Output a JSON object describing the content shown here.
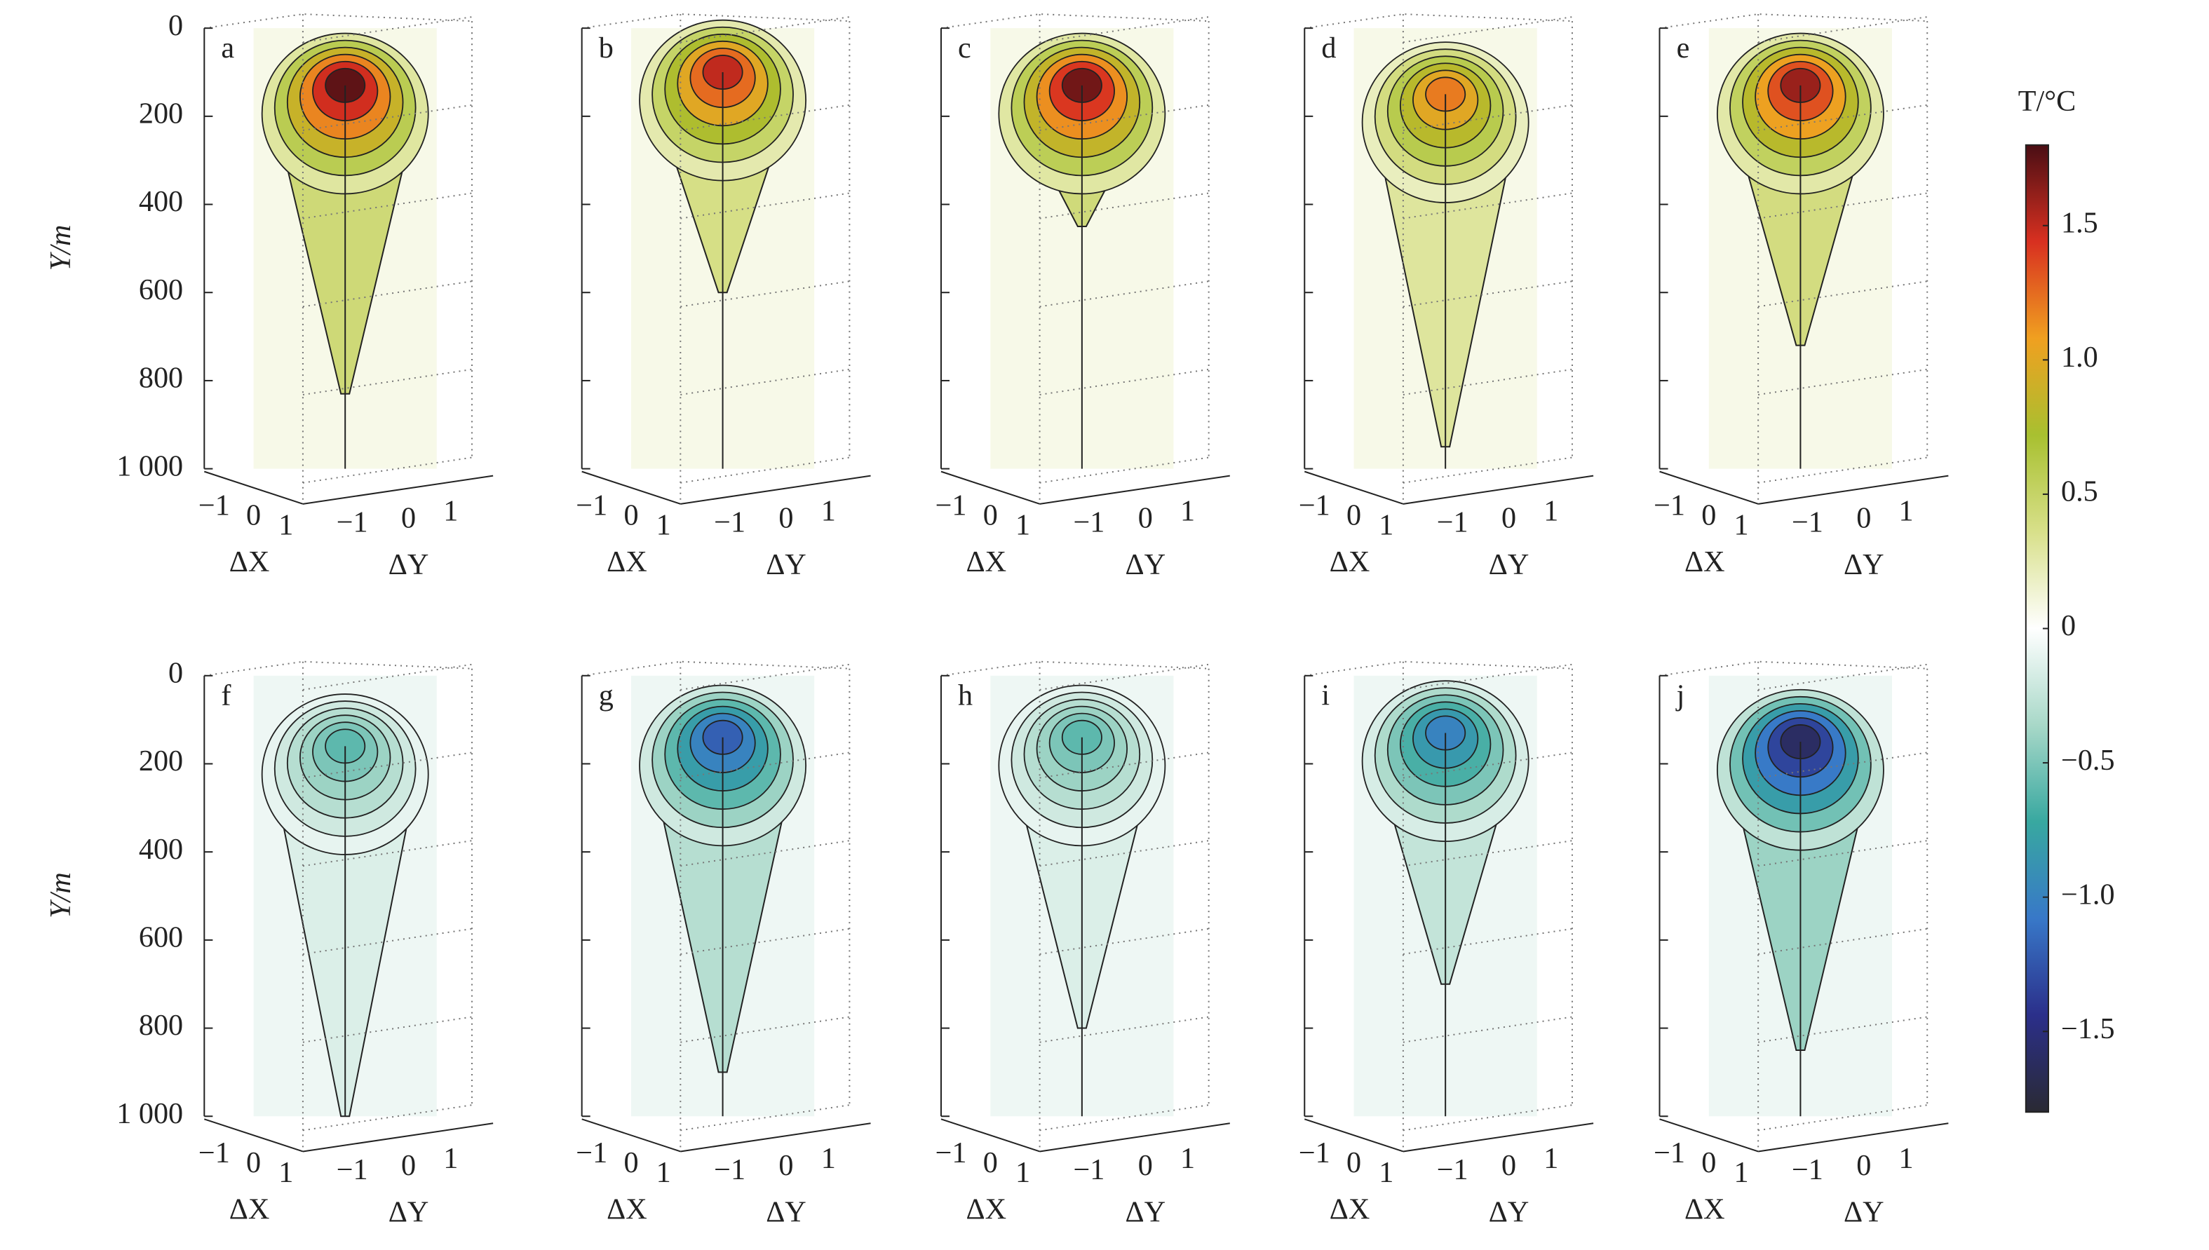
{
  "chart_data": {
    "type": "panel3d",
    "ylabel": "Y/m",
    "xlabel": "ΔX",
    "zlabel": "ΔY",
    "ylim": [
      0,
      1000
    ],
    "yticks": [
      0,
      200,
      400,
      600,
      800,
      {
        "value": 1000,
        "label": "1 000"
      }
    ],
    "xticks": [
      {
        "value": -1,
        "label": "−1"
      },
      0,
      1
    ],
    "zticks": [
      {
        "value": -1,
        "label": "−1"
      },
      0,
      1
    ],
    "panels": [
      {
        "label": "a",
        "peak": 1.75,
        "peak_depth": 130,
        "plume_depth": 830
      },
      {
        "label": "b",
        "peak": 1.5,
        "peak_depth": 100,
        "plume_depth": 600
      },
      {
        "label": "c",
        "peak": 1.7,
        "peak_depth": 130,
        "plume_depth": 450
      },
      {
        "label": "d",
        "peak": 1.2,
        "peak_depth": 150,
        "plume_depth": 950
      },
      {
        "label": "e",
        "peak": 1.6,
        "peak_depth": 130,
        "plume_depth": 720
      },
      {
        "label": "f",
        "peak": -0.6,
        "peak_depth": 160,
        "plume_depth": 1000
      },
      {
        "label": "g",
        "peak": -1.2,
        "peak_depth": 140,
        "plume_depth": 900
      },
      {
        "label": "h",
        "peak": -0.6,
        "peak_depth": 140,
        "plume_depth": 800
      },
      {
        "label": "i",
        "peak": -1.0,
        "peak_depth": 130,
        "plume_depth": 700
      },
      {
        "label": "j",
        "peak": -1.6,
        "peak_depth": 150,
        "plume_depth": 850
      }
    ],
    "colorbar": {
      "title": "T/°C",
      "lim": [
        -1.8,
        1.8
      ],
      "ticks": [
        1.5,
        {
          "value": 1,
          "label": "1.0"
        },
        0.5,
        0,
        {
          "value": -0.5,
          "label": "−0.5"
        },
        {
          "value": -1,
          "label": "−1.0"
        },
        {
          "value": -1.5,
          "label": "−1.5"
        }
      ],
      "colors": [
        "#2a2a33",
        "#2b2f8a",
        "#3878c8",
        "#38a8a0",
        "#a8d8c8",
        "#ffffff",
        "#d8e08a",
        "#a8c030",
        "#f0a020",
        "#d83020",
        "#4a0e14"
      ]
    }
  }
}
